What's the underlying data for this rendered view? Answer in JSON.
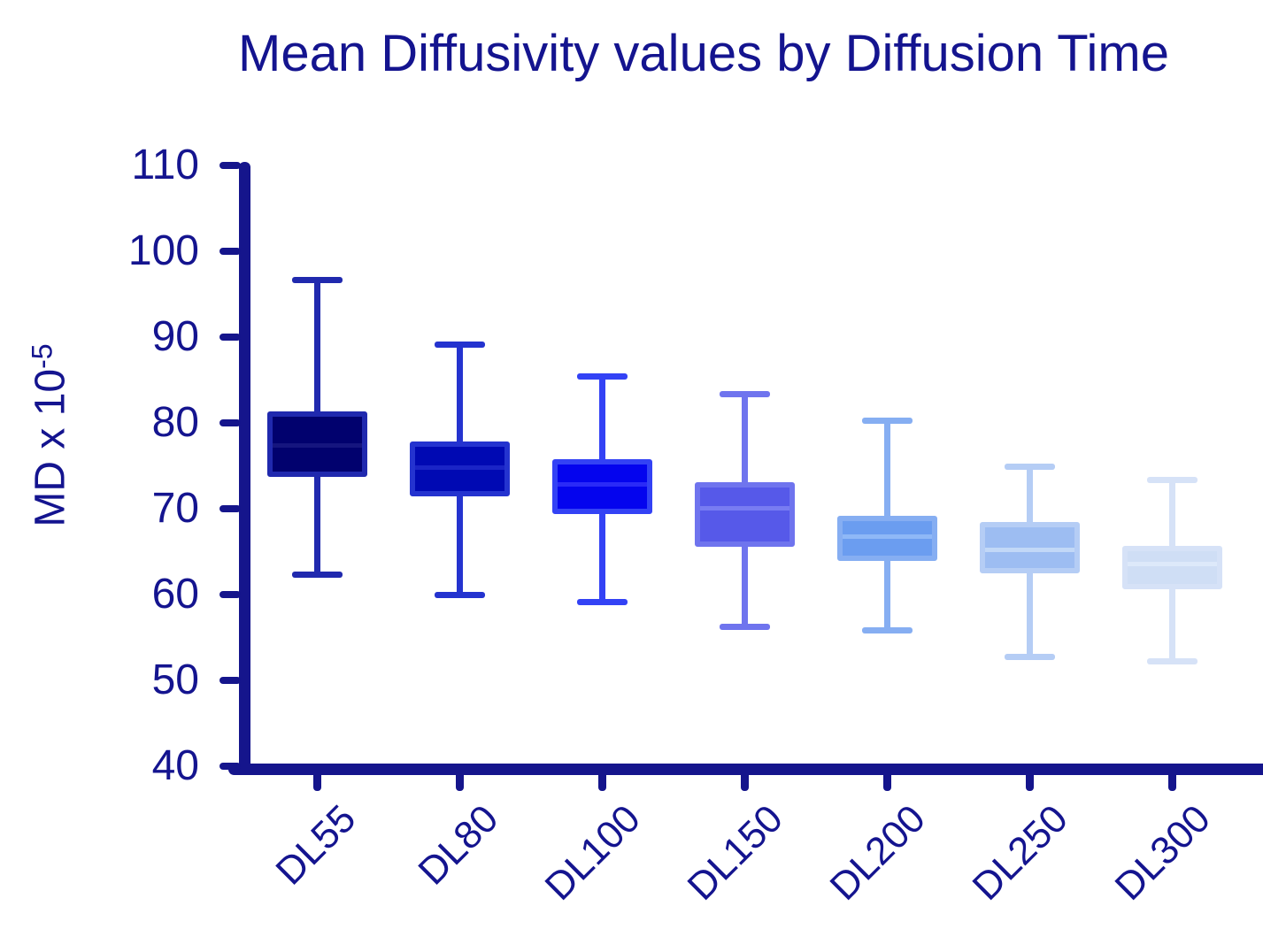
{
  "chart_data": {
    "type": "box",
    "title": "Mean Diffusivity values by Diffusion Time",
    "ylabel_base": "MD x 10",
    "ylabel_exponent": "-5",
    "xlabel": "",
    "ylim": [
      40,
      110
    ],
    "yticks": [
      110,
      100,
      90,
      80,
      70,
      60,
      50,
      40
    ],
    "grid": false,
    "legend": "none",
    "axis_color": "#15158c",
    "text_color": "#14148f",
    "background_color": "#ffffff",
    "categories": [
      "DL55",
      "DL80",
      "DL100",
      "DL150",
      "DL200",
      "DL250",
      "DL300"
    ],
    "boxes": [
      {
        "label": "DL55",
        "whisker_low": 62.3,
        "q1": 73.7,
        "median": 77.4,
        "q3": 81.3,
        "whisker_high": 96.7,
        "fill": "#01016e",
        "stroke": "#2029ae",
        "median_color": "#15157e"
      },
      {
        "label": "DL80",
        "whisker_low": 60.0,
        "q1": 71.4,
        "median": 74.8,
        "q3": 77.8,
        "whisker_high": 89.1,
        "fill": "#0009b3",
        "stroke": "#2433cf",
        "median_color": "#1a24c6"
      },
      {
        "label": "DL100",
        "whisker_low": 59.1,
        "q1": 69.4,
        "median": 72.8,
        "q3": 75.8,
        "whisker_high": 85.4,
        "fill": "#0404ee",
        "stroke": "#3342f5",
        "median_color": "#2a2af7"
      },
      {
        "label": "DL150",
        "whisker_low": 56.2,
        "q1": 65.6,
        "median": 70.1,
        "q3": 73.1,
        "whisker_high": 83.4,
        "fill": "#5659e9",
        "stroke": "#6f74ee",
        "median_color": "#787cf2"
      },
      {
        "label": "DL200",
        "whisker_low": 55.8,
        "q1": 63.9,
        "median": 66.8,
        "q3": 69.2,
        "whisker_high": 80.3,
        "fill": "#6b9df0",
        "stroke": "#86aef2",
        "median_color": "#8fb8f7"
      },
      {
        "label": "DL250",
        "whisker_low": 52.7,
        "q1": 62.5,
        "median": 65.2,
        "q3": 68.5,
        "whisker_high": 74.9,
        "fill": "#9dbdf2",
        "stroke": "#b5cdf5",
        "median_color": "#c2d8f7"
      },
      {
        "label": "DL300",
        "whisker_low": 52.2,
        "q1": 60.6,
        "median": 63.6,
        "q3": 65.7,
        "whisker_high": 73.3,
        "fill": "#cfdef5",
        "stroke": "#d6e2f7",
        "median_color": "#dde9fa"
      }
    ]
  }
}
